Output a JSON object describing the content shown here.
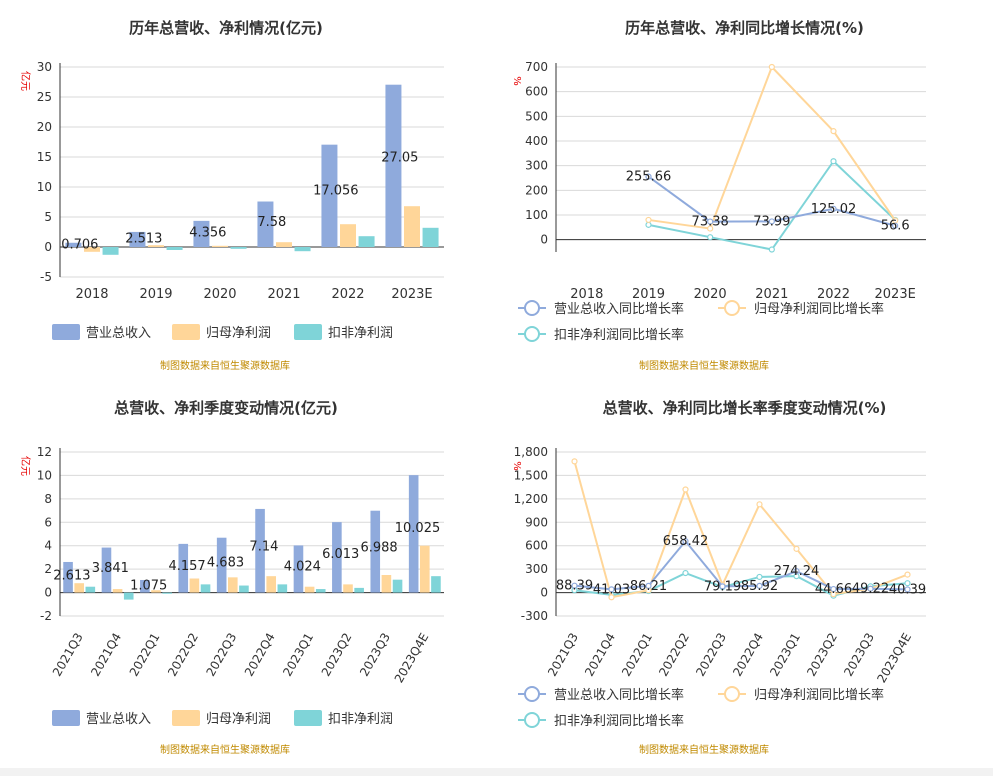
{
  "colors": {
    "revenue": "#8faadc",
    "parent_net": "#ffd699",
    "deducted_net": "#7fd4d8",
    "axis": "#333333",
    "grid": "#d9d9d9",
    "unit": "#e60000",
    "source": "#c08a00"
  },
  "source_note": "制图数据来自恒生聚源数据库",
  "chart_data": [
    {
      "type": "bar",
      "title": "历年总营收、净利情况(亿元)",
      "ylabel": "亿元",
      "ylim": [
        -5,
        30
      ],
      "yticks": [
        -5,
        0,
        5,
        10,
        15,
        20,
        25,
        30
      ],
      "categories": [
        "2018",
        "2019",
        "2020",
        "2021",
        "2022",
        "2023E"
      ],
      "series": [
        {
          "name": "营业总收入",
          "values": [
            0.706,
            2.513,
            4.356,
            7.58,
            17.056,
            27.05
          ]
        },
        {
          "name": "归母净利润",
          "values": [
            -0.8,
            0.3,
            0.2,
            0.8,
            3.8,
            6.8
          ]
        },
        {
          "name": "扣非净利润",
          "values": [
            -1.3,
            -0.5,
            -0.3,
            -0.7,
            1.8,
            3.2
          ]
        }
      ],
      "labels": [
        "0.706",
        "2.513",
        "4.356",
        "7.58",
        "17.056",
        "27.05"
      ]
    },
    {
      "type": "line",
      "title": "历年总营收、净利同比增长情况(%)",
      "ylabel": "%",
      "ylim": [
        -50,
        700
      ],
      "yticks": [
        0,
        100,
        200,
        300,
        400,
        500,
        600,
        700
      ],
      "ytick_labels": [
        "0",
        "100",
        "200",
        "300",
        "400",
        "500",
        "600",
        "700"
      ],
      "categories": [
        "2018",
        "2019",
        "2020",
        "2021",
        "2022",
        "2023E"
      ],
      "series": [
        {
          "name": "营业总收入同比增长率",
          "values": [
            null,
            255.66,
            73.38,
            73.99,
            125.02,
            56.6
          ]
        },
        {
          "name": "归母净利润同比增长率",
          "values": [
            null,
            80,
            45,
            700,
            440,
            78
          ]
        },
        {
          "name": "扣非净利润同比增长率",
          "values": [
            null,
            60,
            10,
            -40,
            318,
            80
          ]
        }
      ],
      "labels": [
        "",
        "255.66",
        "73.38",
        "73.99",
        "125.02",
        "56.6"
      ]
    },
    {
      "type": "bar",
      "title": "总营收、净利季度变动情况(亿元)",
      "ylabel": "亿元",
      "ylim": [
        -2,
        12
      ],
      "yticks": [
        -2,
        0,
        2,
        4,
        6,
        8,
        10,
        12
      ],
      "categories": [
        "2021Q3",
        "2021Q4",
        "2022Q1",
        "2022Q2",
        "2022Q3",
        "2022Q4",
        "2023Q1",
        "2023Q2",
        "2023Q3",
        "2023Q4E"
      ],
      "series": [
        {
          "name": "营业总收入",
          "values": [
            2.613,
            3.841,
            1.075,
            4.157,
            4.683,
            7.14,
            4.024,
            6.013,
            6.988,
            10.025
          ]
        },
        {
          "name": "归母净利润",
          "values": [
            0.8,
            0.3,
            0.2,
            1.2,
            1.3,
            1.4,
            0.5,
            0.7,
            1.5,
            4.0
          ]
        },
        {
          "name": "扣非净利润",
          "values": [
            0.5,
            -0.6,
            -0.1,
            0.7,
            0.6,
            0.7,
            0.3,
            0.4,
            1.1,
            1.4
          ]
        }
      ],
      "labels": [
        "2.613",
        "3.841",
        "1.075",
        "4.157",
        "4.683",
        "7.14",
        "4.024",
        "6.013",
        "6.988",
        "10.025"
      ]
    },
    {
      "type": "line",
      "title": "总营收、净利同比增长率季度变动情况(%)",
      "ylabel": "%",
      "ylim": [
        -300,
        1800
      ],
      "yticks": [
        -300,
        0,
        300,
        600,
        900,
        1200,
        1500,
        1800
      ],
      "ytick_labels": [
        "-300",
        "0",
        "300",
        "600",
        "900",
        "1,200",
        "1,500",
        "1,800"
      ],
      "categories": [
        "2021Q3",
        "2021Q4",
        "2022Q1",
        "2022Q2",
        "2022Q3",
        "2022Q4",
        "2023Q1",
        "2023Q2",
        "2023Q3",
        "2023Q4E"
      ],
      "series": [
        {
          "name": "营业总收入同比增长率",
          "values": [
            88.39,
            41.03,
            86.21,
            658.42,
            79.19,
            85.92,
            274.24,
            44.66,
            49.22,
            40.39
          ]
        },
        {
          "name": "归母净利润同比增长率",
          "values": [
            1680,
            -60,
            30,
            1320,
            100,
            1130,
            560,
            -20,
            50,
            230
          ]
        },
        {
          "name": "扣非净利润同比增长率",
          "values": [
            30,
            -30,
            20,
            250,
            70,
            200,
            210,
            -40,
            80,
            120
          ]
        }
      ],
      "labels": [
        "88.39",
        "41.03",
        "86.21",
        "658.42",
        "79.19",
        "85.92",
        "274.24",
        "44.66",
        "49.22",
        "40.39"
      ]
    }
  ]
}
